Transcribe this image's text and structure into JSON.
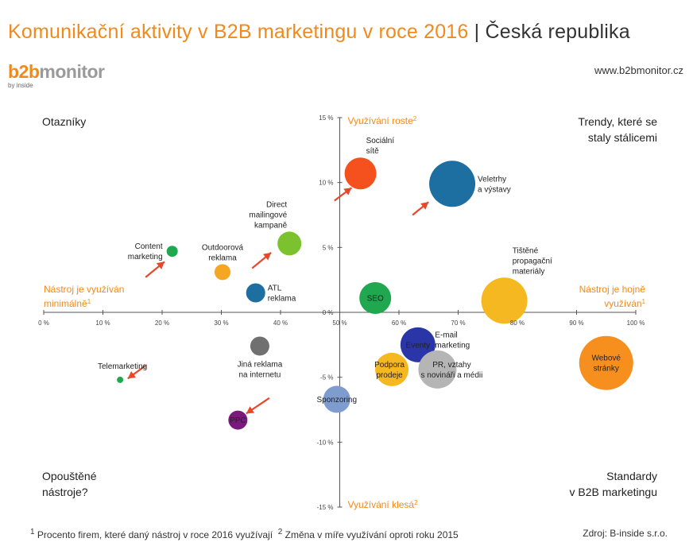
{
  "title": {
    "main": "Komunikační aktivity v B2B marketingu v roce 2016",
    "separator": "|",
    "country": "Česká republika"
  },
  "logo": {
    "b2b": "b2b",
    "monitor": "monitor",
    "byline": "by inside"
  },
  "url": "www.b2bmonitor.cz",
  "quadrants": {
    "top_left": "Otazníky",
    "top_right": [
      "Trendy, které se",
      "staly stálicemi"
    ],
    "bottom_left": [
      "Opouštěné",
      "nástroje?"
    ],
    "bottom_right": [
      "Standardy",
      "v B2B marketingu"
    ]
  },
  "axis_labels": {
    "y_top": "Využívání roste",
    "y_top_sup": "2",
    "y_bottom": "Využívání klesá",
    "y_bottom_sup": "2",
    "x_left": [
      "Nástroj je využíván",
      "minimálně"
    ],
    "x_left_sup": "1",
    "x_right": [
      "Nástroj je hojně",
      "využíván"
    ],
    "x_right_sup": "1"
  },
  "footnote": {
    "sup1": "1",
    "text1": "Procento firem, které daný nástroj v roce 2016 využívají",
    "sup2": "2",
    "text2": "Změna v míře využívání oproti roku 2015"
  },
  "source": "Zdroj: B-inside s.r.o.",
  "chart_data": {
    "type": "scatter",
    "x_ticks": [
      "0 %",
      "10 %",
      "20 %",
      "30 %",
      "40 %",
      "50 %",
      "60 %",
      "70 %",
      "80 %",
      "90 %",
      "100 %"
    ],
    "y_ticks": [
      "15 %",
      "10 %",
      "5 %",
      "0 %",
      "-5 %",
      "-10 %",
      "-15 %"
    ],
    "xlim": [
      0,
      100
    ],
    "ylim": [
      -15,
      15
    ],
    "points": [
      {
        "label": [
          "Sociální",
          "sítě"
        ],
        "x": 53.5,
        "y": 10.7,
        "size": 20,
        "color": "#f4511e",
        "label_pos": "above-right"
      },
      {
        "label": [
          "Veletrhy",
          "a výstavy"
        ],
        "x": 69,
        "y": 9.9,
        "size": 29,
        "color": "#1e6fa1",
        "label_pos": "right"
      },
      {
        "label": [
          "Direct",
          "mailingové",
          "kampaně"
        ],
        "x": 41.5,
        "y": 5.3,
        "size": 15,
        "color": "#7cc22f",
        "label_pos": "above-left"
      },
      {
        "label": [
          "Content",
          "marketing"
        ],
        "x": 21.7,
        "y": 4.7,
        "size": 7,
        "color": "#1fa84f",
        "label_pos": "left"
      },
      {
        "label": [
          "Outdoorová",
          "reklama"
        ],
        "x": 30.2,
        "y": 3.1,
        "size": 10,
        "color": "#f5a623",
        "label_pos": "above"
      },
      {
        "label": [
          "ATL",
          "reklama"
        ],
        "x": 35.8,
        "y": 1.5,
        "size": 12,
        "color": "#1e6fa1",
        "label_pos": "right"
      },
      {
        "label": [
          "SEO"
        ],
        "x": 56,
        "y": 1.1,
        "size": 20,
        "color": "#1fa84f",
        "label_pos": "inside"
      },
      {
        "label": [
          "Tištěné",
          "propagační",
          "materiály"
        ],
        "x": 77.8,
        "y": 0.9,
        "size": 29,
        "color": "#f5b820",
        "label_pos": "above-right"
      },
      {
        "label": [
          "E-mail",
          "marketing"
        ],
        "x": 63.8,
        "y": -2.1,
        "size": 14,
        "color": "#8bc34a",
        "label_pos": "right"
      },
      {
        "label": [
          "Eventy"
        ],
        "x": 63.2,
        "y": -2.5,
        "size": 22,
        "color": "#2a35a8",
        "label_pos": "inside"
      },
      {
        "label": [
          "Jiná reklama",
          "na internetu"
        ],
        "x": 36.5,
        "y": -2.6,
        "size": 12,
        "color": "#707070",
        "label_pos": "below"
      },
      {
        "label": [
          "Webové",
          "stránky"
        ],
        "x": 95,
        "y": -3.9,
        "size": 34,
        "color": "#f78f1e",
        "label_pos": "inside"
      },
      {
        "label": [
          "Podpora",
          "prodeje"
        ],
        "x": 58.8,
        "y": -4.4,
        "size": 21,
        "color": "#f5b820",
        "label_pos": "inside-left"
      },
      {
        "label": [
          "PR, vztahy",
          "s novináři a médii"
        ],
        "x": 66.5,
        "y": -4.4,
        "size": 24,
        "color": "#b5b5b5",
        "label_pos": "inside-right"
      },
      {
        "label": [
          "Telemarketing"
        ],
        "x": 12.9,
        "y": -5.2,
        "size": 4,
        "color": "#1fa84f",
        "label_pos": "above"
      },
      {
        "label": [
          "Sponzoring"
        ],
        "x": 49.5,
        "y": -6.7,
        "size": 17,
        "color": "#7f9ccf",
        "label_pos": "inside"
      },
      {
        "label": [
          "PPC"
        ],
        "x": 32.8,
        "y": -8.3,
        "size": 12,
        "color": "#7b1a7e",
        "label_pos": "inside"
      }
    ],
    "arrows": [
      {
        "from": [
          49.1,
          8.6
        ],
        "to": [
          52,
          9.6
        ]
      },
      {
        "from": [
          62.3,
          7.5
        ],
        "to": [
          65,
          8.5
        ]
      },
      {
        "from": [
          35.2,
          3.4
        ],
        "to": [
          38.4,
          4.6
        ]
      },
      {
        "from": [
          17.2,
          2.7
        ],
        "to": [
          20.4,
          3.9
        ]
      },
      {
        "from": [
          17.2,
          -4.1
        ],
        "to": [
          14.2,
          -5.1
        ]
      },
      {
        "from": [
          38.1,
          -6.6
        ],
        "to": [
          34.2,
          -7.8
        ]
      }
    ]
  }
}
